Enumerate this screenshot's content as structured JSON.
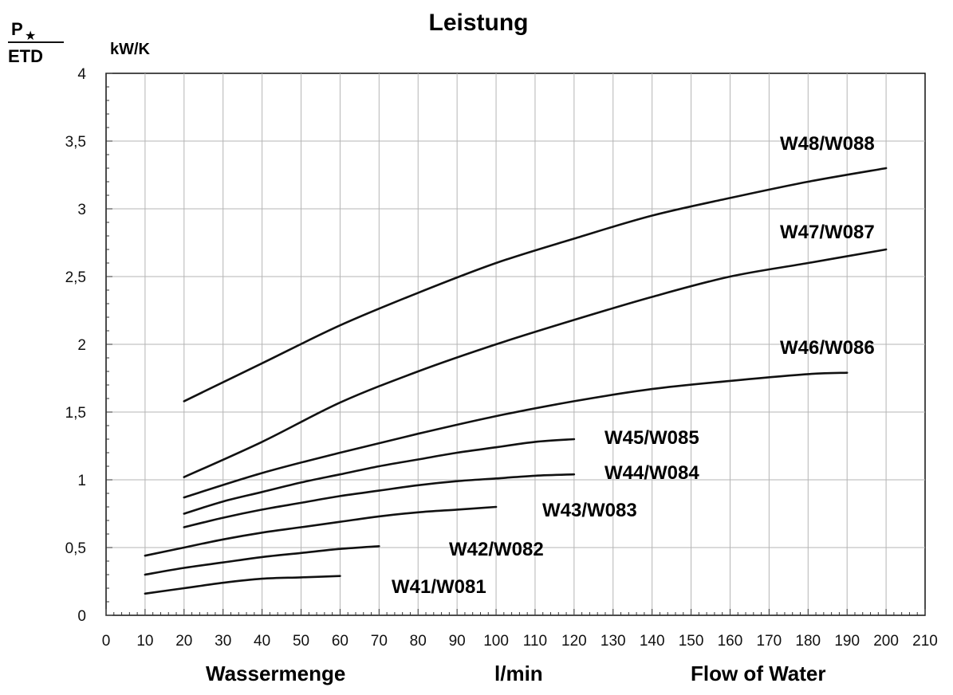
{
  "chart_data": {
    "type": "line",
    "title": "Leistung",
    "ylabel_top": "P",
    "ylabel_bottom": "ETD",
    "yunit": "kW/K",
    "xlabel_left": "Wassermenge",
    "xlabel_mid": "l/min",
    "xlabel_right": "Flow of Water",
    "xlim": [
      0,
      210
    ],
    "ylim": [
      0,
      4
    ],
    "grid": true,
    "x_ticks": [
      "0",
      "10",
      "20",
      "30",
      "40",
      "50",
      "60",
      "70",
      "80",
      "90",
      "100",
      "110",
      "120",
      "130",
      "140",
      "150",
      "160",
      "170",
      "180",
      "190",
      "200",
      "210"
    ],
    "y_ticks": [
      "0",
      "0,5",
      "1",
      "1,5",
      "2",
      "2,5",
      "3",
      "3,5",
      "4"
    ],
    "series": [
      {
        "name": "W41/W081",
        "x": [
          10,
          20,
          30,
          40,
          50,
          60
        ],
        "y": [
          0.16,
          0.2,
          0.24,
          0.27,
          0.28,
          0.29
        ]
      },
      {
        "name": "W42/W082",
        "x": [
          10,
          20,
          30,
          40,
          50,
          60,
          70
        ],
        "y": [
          0.3,
          0.35,
          0.39,
          0.43,
          0.46,
          0.49,
          0.51
        ]
      },
      {
        "name": "W43/W083",
        "x": [
          10,
          20,
          30,
          40,
          50,
          60,
          70,
          80,
          90,
          100
        ],
        "y": [
          0.44,
          0.5,
          0.56,
          0.61,
          0.65,
          0.69,
          0.73,
          0.76,
          0.78,
          0.8
        ]
      },
      {
        "name": "W44/W084",
        "x": [
          20,
          30,
          40,
          50,
          60,
          70,
          80,
          90,
          100,
          110,
          120
        ],
        "y": [
          0.65,
          0.72,
          0.78,
          0.83,
          0.88,
          0.92,
          0.96,
          0.99,
          1.01,
          1.03,
          1.04
        ]
      },
      {
        "name": "W45/W085",
        "x": [
          20,
          30,
          40,
          50,
          60,
          70,
          80,
          90,
          100,
          110,
          120
        ],
        "y": [
          0.75,
          0.84,
          0.91,
          0.98,
          1.04,
          1.1,
          1.15,
          1.2,
          1.24,
          1.28,
          1.3
        ]
      },
      {
        "name": "W46/W086",
        "x": [
          20,
          40,
          60,
          80,
          100,
          120,
          140,
          160,
          180,
          190
        ],
        "y": [
          0.87,
          1.05,
          1.2,
          1.34,
          1.47,
          1.58,
          1.67,
          1.73,
          1.78,
          1.79
        ]
      },
      {
        "name": "W47/W087",
        "x": [
          20,
          40,
          60,
          80,
          100,
          120,
          140,
          160,
          180,
          200
        ],
        "y": [
          1.02,
          1.28,
          1.57,
          1.8,
          2.0,
          2.18,
          2.35,
          2.5,
          2.6,
          2.7
        ]
      },
      {
        "name": "W48/W088",
        "x": [
          20,
          40,
          60,
          80,
          100,
          120,
          140,
          160,
          180,
          200
        ],
        "y": [
          1.58,
          1.86,
          2.14,
          2.38,
          2.6,
          2.78,
          2.95,
          3.08,
          3.2,
          3.3
        ]
      }
    ],
    "series_labels": [
      "W41/W081",
      "W42/W082",
      "W43/W083",
      "W44/W084",
      "W45/W085",
      "W46/W086",
      "W47/W087",
      "W48/W088"
    ]
  }
}
